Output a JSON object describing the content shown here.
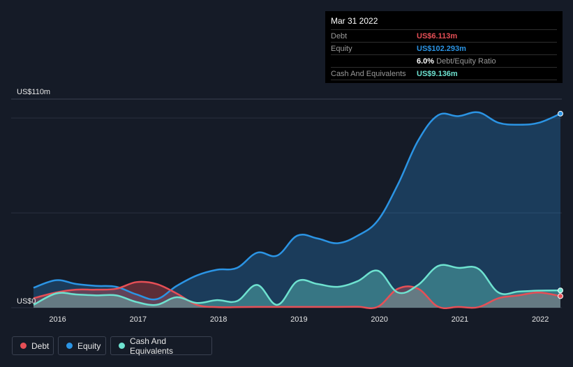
{
  "colors": {
    "background": "#151b27",
    "debt": "#e64f56",
    "equity": "#2b94e4",
    "cash": "#6ee2d0",
    "grid": "#2a3140",
    "tick_text": "#e8e8e8"
  },
  "tooltip": {
    "date": "Mar 31 2022",
    "rows": {
      "debt_label": "Debt",
      "debt_value": "US$6.113m",
      "equity_label": "Equity",
      "equity_value": "US$102.293m",
      "ratio_value": "6.0%",
      "ratio_label": "Debt/Equity Ratio",
      "cash_label": "Cash And Equivalents",
      "cash_value": "US$9.136m"
    }
  },
  "legend": {
    "debt": "Debt",
    "equity": "Equity",
    "cash": "Cash And Equivalents"
  },
  "chart_data": {
    "type": "area",
    "title": "",
    "ylabel_top": "US$110m",
    "ylabel_bottom": "US$0",
    "ylim": [
      0,
      110
    ],
    "xlim": [
      2015.7,
      2022.25
    ],
    "x_ticks": [
      "2016",
      "2017",
      "2018",
      "2019",
      "2020",
      "2021",
      "2022"
    ],
    "x_tick_values": [
      2016,
      2017,
      2018,
      2019,
      2020,
      2021,
      2022
    ],
    "series": [
      {
        "name": "Equity",
        "x": [
          2015.7,
          2015.98,
          2016.23,
          2016.48,
          2016.73,
          2016.98,
          2017.23,
          2017.48,
          2017.73,
          2017.98,
          2018.23,
          2018.48,
          2018.73,
          2018.98,
          2019.23,
          2019.48,
          2019.73,
          2019.98,
          2020.23,
          2020.48,
          2020.73,
          2020.98,
          2021.23,
          2021.48,
          2021.73,
          2021.98,
          2022.25
        ],
        "values": [
          10.5,
          14.5,
          12.5,
          11.5,
          11,
          7,
          4.5,
          11.5,
          17,
          20,
          21,
          29,
          27.5,
          38,
          36.5,
          34,
          38,
          46,
          65,
          88,
          101.5,
          101,
          103,
          97.5,
          96.5,
          97.5,
          102.3
        ]
      },
      {
        "name": "Debt",
        "x": [
          2015.7,
          2015.98,
          2016.23,
          2016.48,
          2016.73,
          2016.98,
          2017.23,
          2017.48,
          2017.73,
          2017.98,
          2018.23,
          2018.48,
          2018.73,
          2018.98,
          2019.23,
          2019.48,
          2019.73,
          2019.98,
          2020.23,
          2020.48,
          2020.73,
          2020.98,
          2021.23,
          2021.48,
          2021.73,
          2021.98,
          2022.25
        ],
        "values": [
          5,
          8,
          9.5,
          9.5,
          10,
          13.5,
          12.5,
          7.5,
          1.5,
          0.3,
          0.3,
          0.4,
          0.4,
          0.4,
          0.4,
          0.4,
          0.5,
          0.5,
          10,
          10,
          0.5,
          0.4,
          0.3,
          5,
          6.5,
          8,
          6.1
        ]
      },
      {
        "name": "Cash And Equivalents",
        "x": [
          2015.7,
          2015.98,
          2016.23,
          2016.48,
          2016.73,
          2016.98,
          2017.23,
          2017.48,
          2017.73,
          2017.98,
          2018.23,
          2018.48,
          2018.73,
          2018.98,
          2019.23,
          2019.48,
          2019.73,
          2019.98,
          2020.23,
          2020.48,
          2020.73,
          2020.98,
          2021.23,
          2021.48,
          2021.73,
          2021.98,
          2022.25
        ],
        "values": [
          1.5,
          7.5,
          7,
          6.5,
          6.5,
          3,
          1.5,
          5.5,
          2.5,
          4,
          3.5,
          12,
          1.5,
          14,
          12.5,
          11,
          14,
          19.5,
          8,
          12,
          22,
          21,
          20.5,
          8,
          8.5,
          9,
          9.1
        ]
      }
    ]
  }
}
